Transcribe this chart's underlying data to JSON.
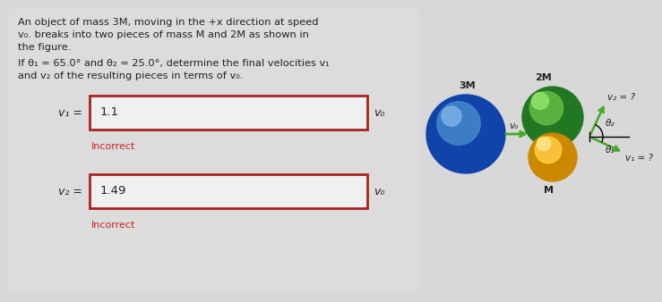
{
  "bg_color": "#d8d8d8",
  "text_color": "#222222",
  "input1_value": "1.1",
  "input2_value": "1.49",
  "label_v1": "v₁ =",
  "label_v2": "v₂ =",
  "unit": "v₀",
  "incorrect_text": "Incorrect",
  "box_border_color": "#aa2222",
  "incorrect_color": "#cc2222",
  "blue_ball_color_center": "#4488cc",
  "blue_ball_color_edge": "#1144aa",
  "blue_ball_highlight": "#88bbee",
  "green_ball_color_center": "#66bb44",
  "green_ball_color_edge": "#227722",
  "green_ball_highlight": "#99ee77",
  "yellow_ball_color_center": "#ffcc44",
  "yellow_ball_color_edge": "#cc8800",
  "yellow_ball_highlight": "#ffee99",
  "arrow_color": "#44aa22",
  "label_2M": "2M",
  "label_M": "M",
  "label_3M": "3M",
  "label_v2_diagram": "v₂ = ?",
  "label_v1_diagram": "v₁ = ?",
  "label_theta2": "θ₂",
  "label_theta1": "θ₁",
  "label_v0": "v₀",
  "line1": "An object of mass 3M, moving in the +x direction at speed",
  "line2": "v₀. breaks into two pieces of mass M and 2M as shown in",
  "line3": "the figure.",
  "line4": "If θ₁ = 65.0° and θ₂ = 25.0°, determine the final velocities v₁",
  "line5": "and v₂ of the resulting pieces in terms of v₀."
}
